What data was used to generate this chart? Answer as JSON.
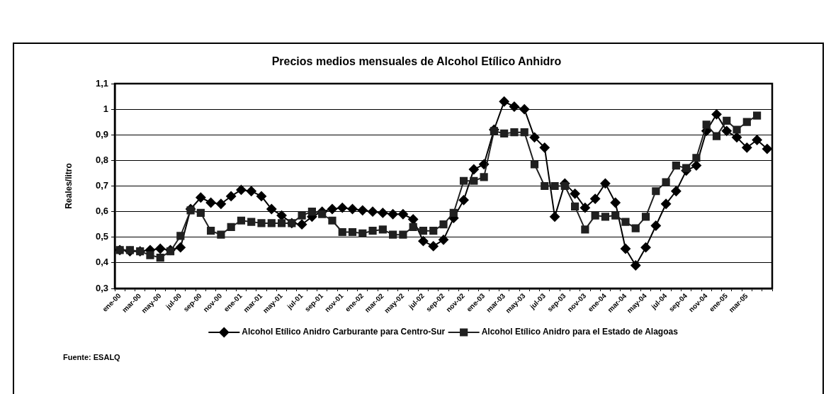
{
  "chart_data": {
    "type": "line",
    "title": "Precios medios mensuales de Alcohol Etílico Anhidro",
    "ylabel": "Reales/litro",
    "categories": [
      "ene-00",
      null,
      "mar-00",
      null,
      "may-00",
      null,
      "jul-00",
      null,
      "sep-00",
      null,
      "nov-00",
      null,
      "ene-01",
      null,
      "mar-01",
      null,
      "may-01",
      null,
      "jul-01",
      null,
      "sep-01",
      null,
      "nov-01",
      null,
      "ene-02",
      null,
      "mar-02",
      null,
      "may-02",
      null,
      "jul-02",
      null,
      "sep-02",
      null,
      "nov-02",
      null,
      "ene-03",
      null,
      "mar-03",
      null,
      "may-03",
      null,
      "jul-03",
      null,
      "sep-03",
      null,
      "nov-03",
      null,
      "ene-04",
      null,
      "mar-04",
      null,
      "may-04",
      null,
      "jul-04",
      null,
      "sep-04",
      null,
      "nov-04",
      null,
      "ene-05",
      null,
      "mar-05",
      null,
      null
    ],
    "series": [
      {
        "name": "Alcohol Etílico Anidro Carburante para Centro-Sur",
        "color": "#000000",
        "marker": "diamond",
        "values": [
          0.45,
          0.445,
          0.445,
          0.45,
          0.455,
          0.45,
          0.46,
          0.61,
          0.655,
          0.635,
          0.63,
          0.66,
          0.685,
          0.68,
          0.66,
          0.61,
          0.585,
          0.555,
          0.55,
          0.58,
          0.6,
          0.61,
          0.615,
          0.61,
          0.605,
          0.6,
          0.595,
          0.59,
          0.59,
          0.57,
          0.485,
          0.465,
          0.49,
          0.575,
          0.645,
          0.765,
          0.785,
          0.92,
          1.03,
          1.01,
          1,
          0.89,
          0.85,
          0.58,
          0.71,
          0.67,
          0.615,
          0.65,
          0.71,
          0.635,
          0.455,
          0.39,
          0.46,
          0.545,
          0.63,
          0.68,
          0.76,
          0.78,
          0.915,
          0.98,
          0.915,
          0.89,
          0.85,
          0.88,
          0.845
        ]
      },
      {
        "name": "Alcohol Etílico Anidro para el Estado de Alagoas",
        "color": "#202020",
        "marker": "square",
        "values": [
          0.45,
          0.45,
          0.445,
          0.43,
          0.42,
          0.445,
          0.505,
          0.605,
          0.595,
          0.525,
          0.51,
          0.54,
          0.565,
          0.56,
          0.555,
          0.555,
          0.555,
          0.555,
          0.585,
          0.6,
          0.59,
          0.565,
          0.52,
          0.52,
          0.515,
          0.525,
          0.53,
          0.51,
          0.51,
          0.54,
          0.525,
          0.525,
          0.55,
          0.595,
          0.72,
          0.72,
          0.735,
          0.915,
          0.905,
          0.91,
          0.91,
          0.785,
          0.7,
          0.7,
          0.7,
          0.62,
          0.53,
          0.585,
          0.58,
          0.585,
          0.56,
          0.535,
          0.58,
          0.68,
          0.715,
          0.78,
          0.77,
          0.81,
          0.94,
          0.895,
          0.955,
          0.92,
          0.95,
          0.975,
          null
        ]
      }
    ],
    "ylim": [
      0.3,
      1.1
    ],
    "yticks": [
      {
        "value": 0.3,
        "label": "0,3"
      },
      {
        "value": 0.4,
        "label": "0,4"
      },
      {
        "value": 0.5,
        "label": "0,5"
      },
      {
        "value": 0.6,
        "label": "0,6"
      },
      {
        "value": 0.7,
        "label": "0,7"
      },
      {
        "value": 0.8,
        "label": "0,8"
      },
      {
        "value": 0.9,
        "label": "0,9"
      },
      1,
      {
        "value": 1.1,
        "label": "1,1"
      }
    ],
    "grid": "y",
    "legend": "bottom",
    "annotations": [
      "Fuente: ESALQ"
    ]
  }
}
